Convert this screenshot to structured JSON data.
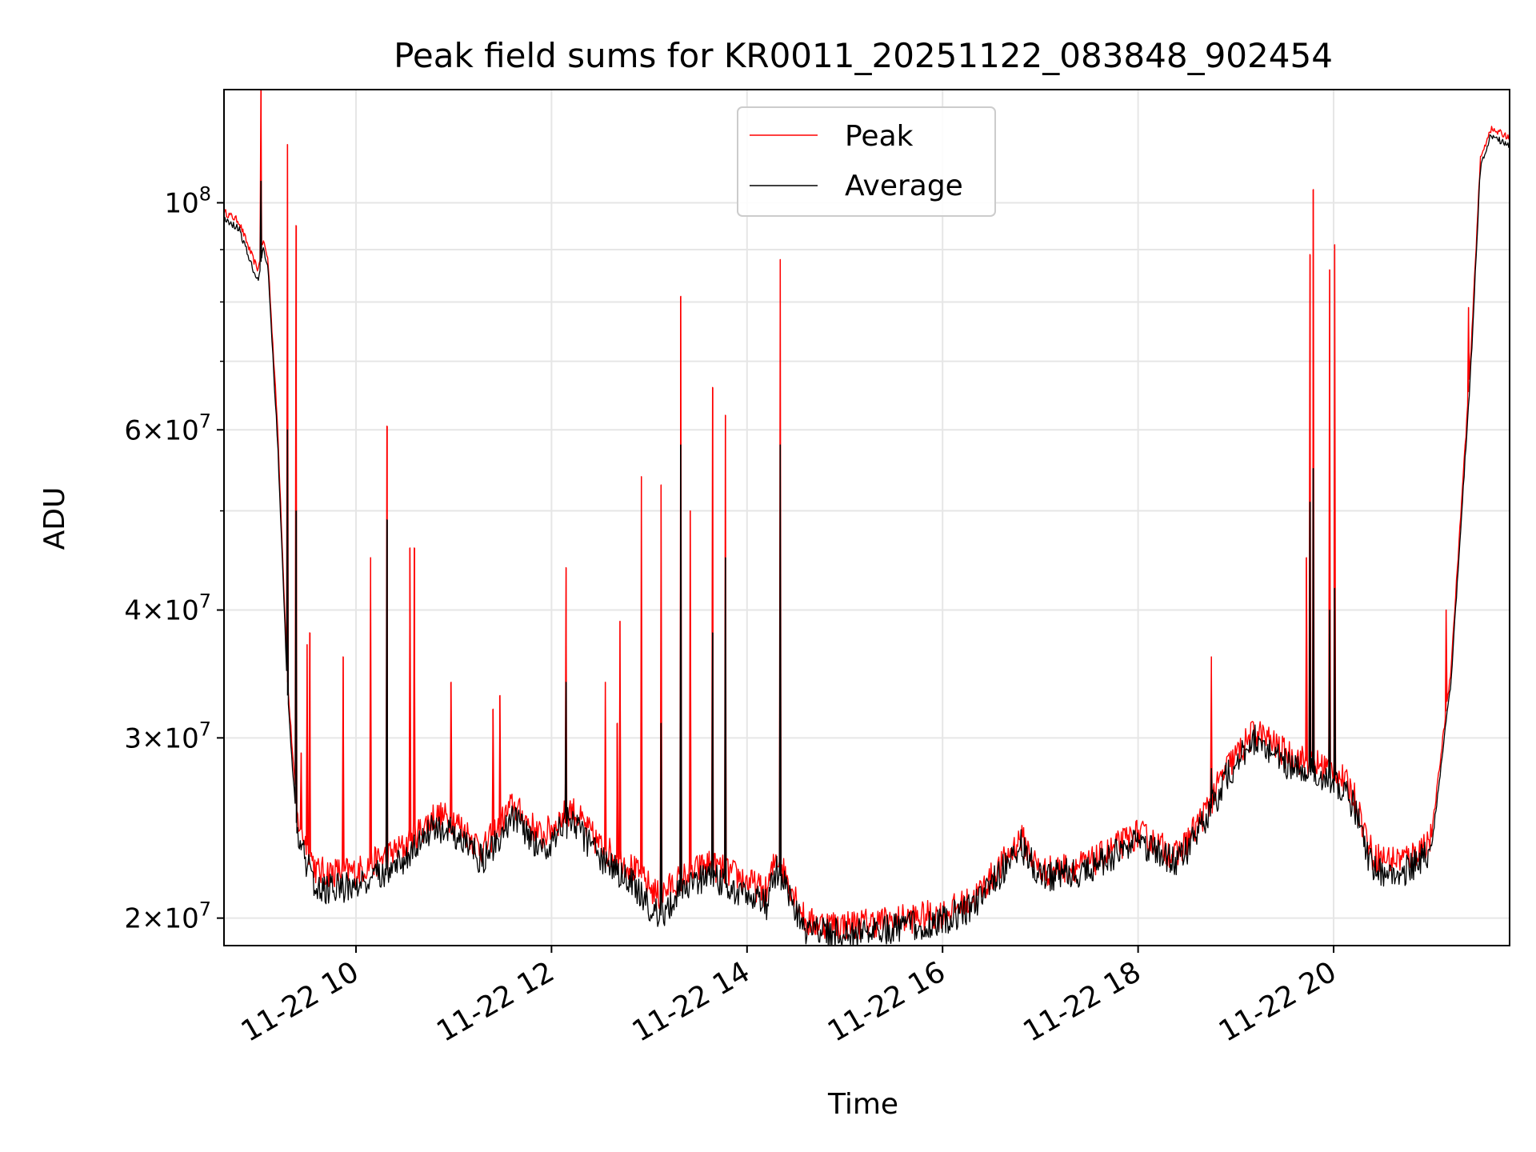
{
  "chart_data": {
    "type": "line",
    "title": "Peak field sums for KR0011_20251122_083848_902454",
    "xlabel": "Time",
    "ylabel": "ADU",
    "yscale": "log",
    "xlim_hours": [
      8.65,
      21.8
    ],
    "ylim": [
      18800000,
      129000000
    ],
    "grid": true,
    "legend_position": "top-center",
    "x_ticks": [
      {
        "hour": 10,
        "label": "11-22 10"
      },
      {
        "hour": 12,
        "label": "11-22 12"
      },
      {
        "hour": 14,
        "label": "11-22 14"
      },
      {
        "hour": 16,
        "label": "11-22 16"
      },
      {
        "hour": 18,
        "label": "11-22 18"
      },
      {
        "hour": 20,
        "label": "11-22 20"
      }
    ],
    "y_ticks": [
      {
        "value": 20000000,
        "base": "2×10",
        "exp": "7"
      },
      {
        "value": 30000000,
        "base": "3×10",
        "exp": "7"
      },
      {
        "value": 40000000,
        "base": "4×10",
        "exp": "7"
      },
      {
        "value": 60000000,
        "base": "6×10",
        "exp": "7"
      },
      {
        "value": 100000000,
        "base": "10",
        "exp": "8"
      }
    ],
    "y_minor_ticks": [
      50000000,
      70000000,
      80000000,
      90000000
    ],
    "baseline_hours": [
      8.65,
      8.8,
      8.95,
      9.0,
      9.05,
      9.1,
      9.2,
      9.3,
      9.4,
      9.6,
      10.0,
      10.5,
      10.8,
      11.0,
      11.3,
      11.6,
      11.9,
      12.2,
      12.5,
      12.8,
      13.1,
      13.3,
      13.6,
      13.9,
      14.2,
      14.3,
      14.5,
      14.6,
      15.0,
      15.5,
      16.0,
      16.3,
      16.6,
      16.8,
      17.0,
      17.5,
      18.0,
      18.4,
      18.7,
      18.9,
      19.2,
      19.5,
      19.7,
      20.0,
      20.2,
      20.4,
      20.6,
      20.8,
      21.0,
      21.2,
      21.4,
      21.5,
      21.6,
      21.8
    ],
    "series": [
      {
        "name": "Peak",
        "color": "#ff0000",
        "base_values": [
          98000000,
          96000000,
          88000000,
          86000000,
          92000000,
          88000000,
          60000000,
          34000000,
          25000000,
          22200000,
          22200000,
          23500000,
          25200000,
          25000000,
          23300000,
          25800000,
          24000000,
          25600000,
          23500000,
          22500000,
          21000000,
          21800000,
          22600000,
          22000000,
          21200000,
          23000000,
          21000000,
          19800000,
          19700000,
          19900000,
          20200000,
          20800000,
          22500000,
          24000000,
          22200000,
          22600000,
          24200000,
          23000000,
          25500000,
          28000000,
          30500000,
          29000000,
          28500000,
          28000000,
          26500000,
          23000000,
          22800000,
          23000000,
          24000000,
          35000000,
          70000000,
          110000000,
          118000000,
          116000000
        ],
        "spikes": [
          [
            9.03,
            129000000
          ],
          [
            9.3,
            114000000
          ],
          [
            9.39,
            95000000
          ],
          [
            9.44,
            29000000
          ],
          [
            9.5,
            37000000
          ],
          [
            9.53,
            38000000
          ],
          [
            9.87,
            36000000
          ],
          [
            10.15,
            45000000
          ],
          [
            10.32,
            60500000
          ],
          [
            10.55,
            46000000
          ],
          [
            10.6,
            46000000
          ],
          [
            10.97,
            34000000
          ],
          [
            11.4,
            32000000
          ],
          [
            11.47,
            33000000
          ],
          [
            12.15,
            44000000
          ],
          [
            12.55,
            34000000
          ],
          [
            12.67,
            31000000
          ],
          [
            12.7,
            39000000
          ],
          [
            12.92,
            54000000
          ],
          [
            13.12,
            53000000
          ],
          [
            13.32,
            81000000
          ],
          [
            13.42,
            50000000
          ],
          [
            13.65,
            66000000
          ],
          [
            13.78,
            62000000
          ],
          [
            14.34,
            88000000
          ],
          [
            18.75,
            36000000
          ],
          [
            19.72,
            45000000
          ],
          [
            19.76,
            89000000
          ],
          [
            19.79,
            103000000
          ],
          [
            19.96,
            86000000
          ],
          [
            20.01,
            91000000
          ],
          [
            21.15,
            40000000
          ],
          [
            21.38,
            79000000
          ]
        ]
      },
      {
        "name": "Average",
        "color": "#000000",
        "base_values": [
          96500000,
          94500000,
          86000000,
          84000000,
          90000000,
          86000000,
          58000000,
          33000000,
          24000000,
          21300000,
          21500000,
          22800000,
          24600000,
          24200000,
          22700000,
          25200000,
          23300000,
          25000000,
          22800000,
          21800000,
          20000000,
          21200000,
          22000000,
          21300000,
          20600000,
          22400000,
          20400000,
          19400000,
          19300000,
          19500000,
          19900000,
          20500000,
          22200000,
          23600000,
          21900000,
          22300000,
          23800000,
          22600000,
          25000000,
          27500000,
          30000000,
          28400000,
          27900000,
          27300000,
          25800000,
          22300000,
          22100000,
          22400000,
          23400000,
          34000000,
          68000000,
          108000000,
          116000000,
          114000000
        ],
        "spikes": [
          [
            9.03,
            105000000
          ],
          [
            9.3,
            60000000
          ],
          [
            9.39,
            50000000
          ],
          [
            10.32,
            49000000
          ],
          [
            12.15,
            34000000
          ],
          [
            13.12,
            31000000
          ],
          [
            13.32,
            58000000
          ],
          [
            13.65,
            38000000
          ],
          [
            13.78,
            45000000
          ],
          [
            14.34,
            58000000
          ],
          [
            18.75,
            28000000
          ],
          [
            19.76,
            51000000
          ],
          [
            19.79,
            55000000
          ],
          [
            19.96,
            40000000
          ],
          [
            20.01,
            42000000
          ]
        ]
      }
    ]
  }
}
